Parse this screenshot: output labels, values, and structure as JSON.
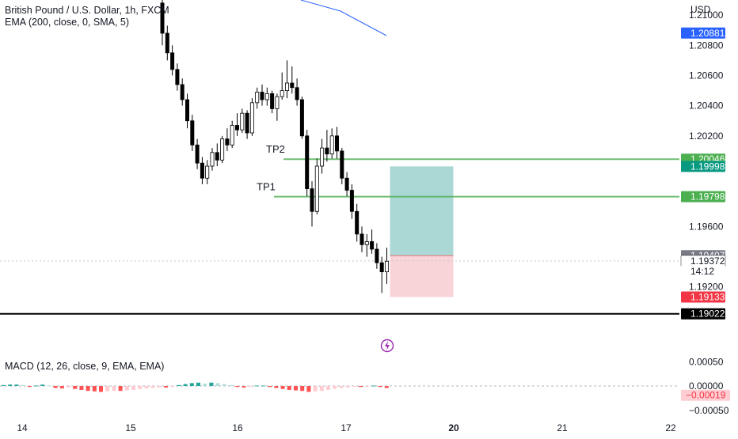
{
  "symbol_title": "British Pound / U.S. Dollar, 1h, FXCM",
  "ema_indicator": "EMA (200, close, 0, SMA, 5)",
  "macd_indicator": "MACD (12, 26, close, 9, EMA, EMA)",
  "currency": "USD",
  "colors": {
    "up_candle": "#ffffff",
    "down_candle": "#000000",
    "ema_line": "#2962ff",
    "tp_line": "#4caf50",
    "target_zone": "#8fc9c5",
    "stop_zone": "#f5c6cc",
    "macd_pos_strong": "#26a69a",
    "macd_pos_weak": "#b2dfdb",
    "macd_neg_strong": "#ff5252",
    "macd_neg_weak": "#ffcdd2",
    "lightning_icon": "#9c27b0"
  },
  "chart_data": [
    {
      "type": "candlestick",
      "title": "British Pound / U.S. Dollar, 1h, FXCM",
      "ylabel": "USD",
      "ylim": [
        1.189,
        1.211
      ],
      "y_ticks": [
        "1.21000",
        "1.20800",
        "1.20600",
        "1.20400",
        "1.20200",
        "1.19600",
        "1.19200"
      ],
      "x_ticks": [
        "14",
        "15",
        "16",
        "17",
        "20",
        "21",
        "22"
      ],
      "price_labels": [
        {
          "id": "ema",
          "text": "1.20881",
          "value": 1.20881,
          "color": "#2962ff"
        },
        {
          "id": "tp2",
          "text": "1.20046",
          "value": 1.20046,
          "color": "#4caf50"
        },
        {
          "id": "target",
          "text": "1.19998",
          "value": 1.19998,
          "color": "#089981"
        },
        {
          "id": "tp1",
          "text": "1.19798",
          "value": 1.19798,
          "color": "#4caf50"
        },
        {
          "id": "prev",
          "text": "1.19407",
          "value": 1.19407,
          "color": "#787b86"
        },
        {
          "id": "last",
          "text": "1.19372",
          "value": 1.19372,
          "color": "#ffffff"
        },
        {
          "id": "countdown",
          "text": "14:12",
          "value": 1.1934,
          "color": "#ffffff"
        },
        {
          "id": "stop",
          "text": "1.19133",
          "value": 1.19133,
          "color": "#f23645"
        },
        {
          "id": "support",
          "text": "1.19022",
          "value": 1.19022,
          "color": "#000000"
        }
      ],
      "annotations": [
        {
          "text": "TP1",
          "value": 1.19798
        },
        {
          "text": "TP2",
          "value": 1.20046
        }
      ],
      "horizontal_line": 1.19022,
      "position": {
        "entry": 1.19407,
        "target": 1.19998,
        "stop": 1.19133
      },
      "ema_line": [
        [
          42,
          1.2112
        ],
        [
          48,
          1.21
        ],
        [
          55,
          1.2088
        ]
      ],
      "candles": [
        [
          1.2108,
          1.2112,
          1.208,
          1.2088
        ],
        [
          1.2088,
          1.2093,
          1.207,
          1.2075
        ],
        [
          1.2075,
          1.208,
          1.206,
          1.2064
        ],
        [
          1.2064,
          1.2068,
          1.205,
          1.2054
        ],
        [
          1.2054,
          1.2058,
          1.204,
          1.2044
        ],
        [
          1.2044,
          1.2048,
          1.2025,
          1.203
        ],
        [
          1.203,
          1.2034,
          1.201,
          1.2014
        ],
        [
          1.2014,
          1.2018,
          1.1998,
          1.2002
        ],
        [
          1.2002,
          1.2006,
          1.1988,
          1.1992
        ],
        [
          1.1992,
          1.2004,
          1.1988,
          1.2
        ],
        [
          1.2,
          1.2012,
          1.1997,
          1.2009
        ],
        [
          1.2009,
          1.2015,
          1.2,
          1.2004
        ],
        [
          1.2004,
          1.202,
          1.2002,
          1.2018
        ],
        [
          1.2018,
          1.2025,
          1.201,
          1.2014
        ],
        [
          1.2014,
          1.203,
          1.2012,
          1.2027
        ],
        [
          1.2027,
          1.2035,
          1.202,
          1.2024
        ],
        [
          1.2024,
          1.2038,
          1.2022,
          1.2035
        ],
        [
          1.2035,
          1.2037,
          1.2018,
          1.2022
        ],
        [
          1.2022,
          1.2045,
          1.202,
          1.2042
        ],
        [
          1.2042,
          1.2052,
          1.2038,
          1.2049
        ],
        [
          1.2049,
          1.2054,
          1.204,
          1.2044
        ],
        [
          1.2044,
          1.2052,
          1.204,
          1.2048
        ],
        [
          1.2048,
          1.205,
          1.2035,
          1.2038
        ],
        [
          1.2038,
          1.2048,
          1.203,
          1.2046
        ],
        [
          1.2046,
          1.2062,
          1.2044,
          1.205
        ],
        [
          1.205,
          1.207,
          1.2045,
          1.2055
        ],
        [
          1.2055,
          1.2066,
          1.2048,
          1.2052
        ],
        [
          1.2052,
          1.2058,
          1.204,
          1.2044
        ],
        [
          1.2044,
          1.2046,
          1.2018,
          1.202
        ],
        [
          1.202,
          1.2024,
          1.198,
          1.1985
        ],
        [
          1.1985,
          1.199,
          1.196,
          1.197
        ],
        [
          1.197,
          1.2005,
          1.1968,
          1.2
        ],
        [
          1.2,
          1.2018,
          1.1995,
          1.2012
        ],
        [
          1.2012,
          1.2024,
          1.2003,
          1.2008
        ],
        [
          1.2008,
          1.2025,
          1.2005,
          1.202
        ],
        [
          1.202,
          1.2026,
          1.2005,
          1.201
        ],
        [
          1.201,
          1.2012,
          1.1988,
          1.1992
        ],
        [
          1.1992,
          1.1996,
          1.198,
          1.1984
        ],
        [
          1.1984,
          1.1988,
          1.1965,
          1.197
        ],
        [
          1.197,
          1.1975,
          1.195,
          1.1955
        ],
        [
          1.1955,
          1.196,
          1.1943,
          1.1948
        ],
        [
          1.1948,
          1.1955,
          1.194,
          1.195
        ],
        [
          1.195,
          1.1958,
          1.1942,
          1.1945
        ],
        [
          1.1945,
          1.1949,
          1.1932,
          1.1936
        ],
        [
          1.1936,
          1.194,
          1.1916,
          1.193
        ],
        [
          1.193,
          1.1946,
          1.1922,
          1.1937
        ]
      ]
    },
    {
      "type": "bar",
      "title": "MACD (12, 26, close, 9, EMA, EMA)",
      "ylim": [
        -0.00065,
        0.0007
      ],
      "y_ticks": [
        "0.00050",
        "0.00000",
        "−0.00050"
      ],
      "current_label": {
        "text": "−0.00019",
        "value": -0.00019
      },
      "histogram": [
        2e-05,
        3e-05,
        3e-05,
        2e-05,
        -2e-05,
        1e-05,
        3e-05,
        1e-05,
        -4e-05,
        -5e-05,
        -3e-05,
        -6e-05,
        -8e-05,
        -0.0001,
        -0.00011,
        -0.00012,
        -0.00011,
        -0.0001,
        -0.0001,
        -9e-05,
        -8e-05,
        -6e-05,
        -5e-05,
        -4e-05,
        -3e-05,
        -3e-05,
        -2e-05,
        2e-05,
        4e-05,
        6e-05,
        7e-05,
        5e-05,
        7e-05,
        6e-05,
        4e-05,
        2e-05,
        -2e-05,
        -3e-05,
        -1e-05,
        1e-05,
        1e-05,
        -2e-05,
        -4e-05,
        -6e-05,
        -8e-05,
        -9e-05,
        -0.0001,
        -0.00012,
        -0.00011,
        -0.0001,
        -8e-05,
        -6e-05,
        -4e-05,
        -3e-05,
        -2e-05,
        -2e-05,
        -1e-05,
        1e-05,
        -2e-05,
        -4e-05
      ]
    }
  ]
}
